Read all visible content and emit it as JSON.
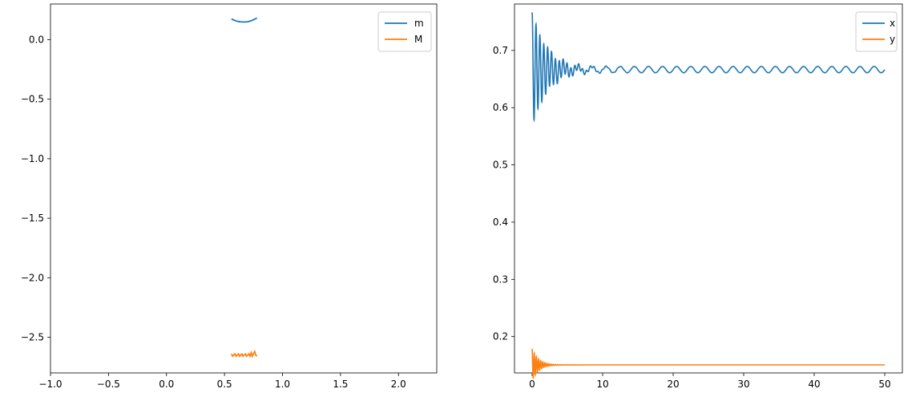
{
  "chart_data": [
    {
      "type": "line",
      "xlim": [
        -1.0,
        2.33
      ],
      "ylim": [
        -2.8,
        0.3
      ],
      "xticks": [
        -1.0,
        -0.5,
        0.0,
        0.5,
        1.0,
        1.5,
        2.0
      ],
      "xtick_labels": [
        "−1.0",
        "−0.5",
        "0.0",
        "0.5",
        "1.0",
        "1.5",
        "2.0"
      ],
      "yticks": [
        0.0,
        -0.5,
        -1.0,
        -1.5,
        -2.0,
        -2.5
      ],
      "ytick_labels": [
        "0.0",
        "−0.5",
        "−1.0",
        "−1.5",
        "−2.0",
        "−2.5"
      ],
      "legend_position": "top-right",
      "series": [
        {
          "name": "m",
          "color": "#1f77b4",
          "x": [
            0.56,
            0.58,
            0.6,
            0.62,
            0.64,
            0.66,
            0.68,
            0.7,
            0.72,
            0.74,
            0.76,
            0.78
          ],
          "y": [
            0.175,
            0.165,
            0.158,
            0.153,
            0.15,
            0.149,
            0.149,
            0.151,
            0.156,
            0.163,
            0.172,
            0.183
          ]
        },
        {
          "name": "M",
          "color": "#ff7f0e",
          "x": [
            0.56,
            0.57,
            0.58,
            0.59,
            0.6,
            0.61,
            0.62,
            0.63,
            0.64,
            0.65,
            0.66,
            0.67,
            0.68,
            0.69,
            0.7,
            0.71,
            0.72,
            0.73,
            0.74,
            0.75,
            0.76,
            0.77,
            0.78
          ],
          "y": [
            -2.64,
            -2.66,
            -2.65,
            -2.64,
            -2.66,
            -2.65,
            -2.64,
            -2.66,
            -2.65,
            -2.64,
            -2.66,
            -2.65,
            -2.64,
            -2.66,
            -2.65,
            -2.64,
            -2.66,
            -2.63,
            -2.66,
            -2.64,
            -2.62,
            -2.65,
            -2.66
          ]
        }
      ]
    },
    {
      "type": "line",
      "xlim": [
        -2.5,
        52.5
      ],
      "ylim": [
        0.1365,
        0.7811
      ],
      "xticks": [
        0,
        10,
        20,
        30,
        40,
        50
      ],
      "xtick_labels": [
        "0",
        "10",
        "20",
        "30",
        "40",
        "50"
      ],
      "yticks": [
        0.2,
        0.3,
        0.4,
        0.5,
        0.6,
        0.7
      ],
      "ytick_labels": [
        "0.2",
        "0.3",
        "0.4",
        "0.5",
        "0.6",
        "0.7"
      ],
      "legend_position": "top-right",
      "series": [
        {
          "name": "x",
          "color": "#1f77b4",
          "x_range": [
            0,
            50
          ],
          "baseline": 0.6665,
          "initial_amplitude": 0.1,
          "decay_rate": 0.45,
          "fast_period": 0.55,
          "steady_amplitude": 0.0055,
          "slow_period": 2.0
        },
        {
          "name": "y",
          "color": "#ff7f0e",
          "x_range": [
            0,
            50
          ],
          "baseline": 0.1505,
          "initial_amplitude": 0.028,
          "decay_rate": 1.1,
          "fast_period": 0.3
        }
      ]
    }
  ]
}
